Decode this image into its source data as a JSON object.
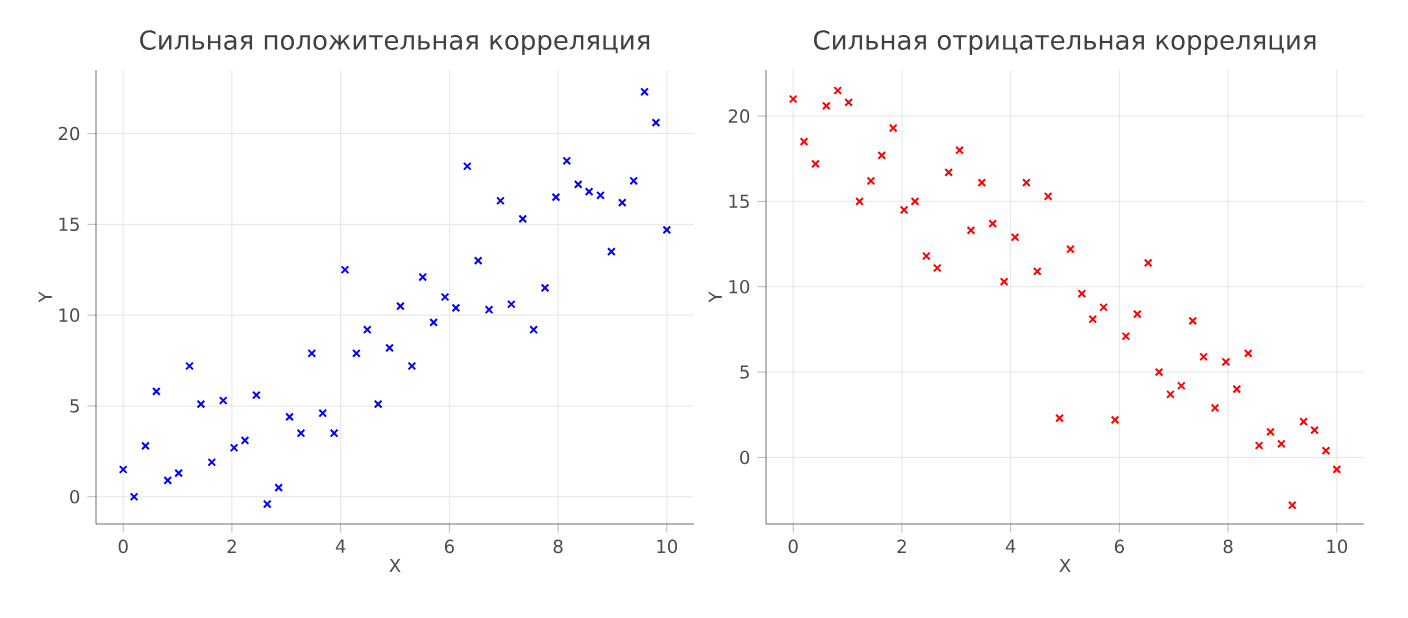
{
  "chart_data": [
    {
      "type": "scatter",
      "title": "Сильная положительная корреляция",
      "xlabel": "X",
      "ylabel": "Y",
      "color": "#0000ff",
      "marker": "cross",
      "grid": true,
      "x": [
        0,
        0.2,
        0.41,
        0.61,
        0.82,
        1.02,
        1.22,
        1.43,
        1.63,
        1.84,
        2.04,
        2.24,
        2.45,
        2.65,
        2.86,
        3.06,
        3.27,
        3.47,
        3.67,
        3.88,
        4.08,
        4.29,
        4.49,
        4.69,
        4.9,
        5.1,
        5.31,
        5.51,
        5.71,
        5.92,
        6.12,
        6.33,
        6.53,
        6.73,
        6.94,
        7.14,
        7.35,
        7.55,
        7.76,
        7.96,
        8.16,
        8.37,
        8.57,
        8.78,
        8.98,
        9.18,
        9.39,
        9.59,
        9.8,
        10
      ],
      "values": [
        1.5,
        0.0,
        2.8,
        5.8,
        0.9,
        1.3,
        7.2,
        5.1,
        1.9,
        5.3,
        2.7,
        3.1,
        5.6,
        -0.4,
        0.5,
        4.4,
        3.5,
        7.9,
        4.6,
        3.5,
        12.5,
        7.9,
        9.2,
        5.1,
        8.2,
        10.5,
        7.2,
        12.1,
        9.6,
        11.0,
        10.4,
        18.2,
        13.0,
        10.3,
        16.3,
        10.6,
        15.3,
        9.2,
        11.5,
        16.5,
        18.5,
        17.2,
        16.8,
        16.6,
        13.5,
        16.2,
        17.4,
        22.3,
        20.6,
        14.7
      ],
      "xlim": [
        -0.5,
        10.5
      ],
      "ylim": [
        -1.5,
        23.5
      ],
      "xticks": [
        0,
        2,
        4,
        6,
        8,
        10
      ],
      "yticks": [
        0,
        5,
        10,
        15,
        20
      ]
    },
    {
      "type": "scatter",
      "title": "Сильная отрицательная корреляция",
      "xlabel": "X",
      "ylabel": "Y",
      "color": "#ff0000",
      "marker": "cross",
      "grid": true,
      "x": [
        0,
        0.2,
        0.41,
        0.61,
        0.82,
        1.02,
        1.22,
        1.43,
        1.63,
        1.84,
        2.04,
        2.24,
        2.45,
        2.65,
        2.86,
        3.06,
        3.27,
        3.47,
        3.67,
        3.88,
        4.08,
        4.29,
        4.49,
        4.69,
        4.9,
        5.1,
        5.31,
        5.51,
        5.71,
        5.92,
        6.12,
        6.33,
        6.53,
        6.73,
        6.94,
        7.14,
        7.35,
        7.55,
        7.76,
        7.96,
        8.16,
        8.37,
        8.57,
        8.78,
        8.98,
        9.18,
        9.39,
        9.59,
        9.8,
        10
      ],
      "values": [
        21.0,
        18.5,
        17.2,
        20.6,
        21.5,
        20.8,
        15.0,
        16.2,
        17.7,
        19.3,
        14.5,
        15.0,
        11.8,
        11.1,
        16.7,
        18.0,
        13.3,
        16.1,
        13.7,
        10.3,
        12.9,
        16.1,
        10.9,
        15.3,
        2.3,
        12.2,
        9.6,
        8.1,
        8.8,
        2.2,
        7.1,
        8.4,
        11.4,
        5.0,
        3.7,
        4.2,
        8.0,
        5.9,
        2.9,
        5.6,
        4.0,
        6.1,
        0.7,
        1.5,
        0.8,
        -2.8,
        2.1,
        1.6,
        0.4,
        -0.7
      ],
      "xlim": [
        -0.5,
        10.5
      ],
      "ylim": [
        -3.9,
        22.7
      ],
      "xticks": [
        0,
        2,
        4,
        6,
        8,
        10
      ],
      "yticks": [
        0,
        5,
        10,
        15,
        20
      ]
    }
  ]
}
